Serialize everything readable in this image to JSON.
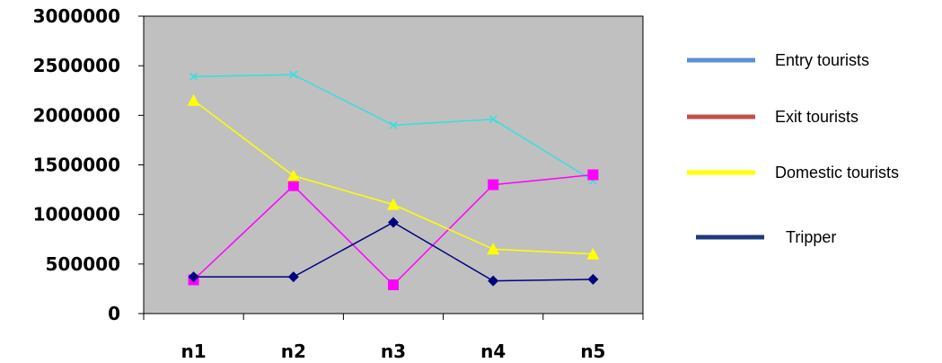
{
  "chart_data": {
    "type": "line",
    "categories": [
      "n1",
      "n2",
      "n3",
      "n4",
      "n5"
    ],
    "ylim": [
      0,
      3000000
    ],
    "y_ticks": [
      "0",
      "500000",
      "1000000",
      "1500000",
      "2000000",
      "2500000",
      "3000000"
    ],
    "plot_background": "#c0c0c0",
    "grid": false,
    "legend_position": "right",
    "series": [
      {
        "name": "Entry tourists",
        "legend_color": "#5b8fd6",
        "line_color": "#33e0e0",
        "marker": "x",
        "values": [
          2390000,
          2410000,
          1900000,
          1960000,
          1340000
        ]
      },
      {
        "name": "Exit tourists",
        "legend_color": "#c0504d",
        "line_color": "#ff00ff",
        "marker": "square",
        "values": [
          340000,
          1290000,
          290000,
          1300000,
          1400000
        ]
      },
      {
        "name": "Domestic tourists",
        "legend_color": "#ffff00",
        "line_color": "#ffff00",
        "marker": "triangle",
        "values": [
          2150000,
          1390000,
          1100000,
          650000,
          600000
        ]
      },
      {
        "name": "Tripper",
        "legend_color": "#1f3a7a",
        "line_color": "#000080",
        "marker": "diamond",
        "values": [
          370000,
          370000,
          920000,
          330000,
          345000
        ]
      }
    ]
  }
}
